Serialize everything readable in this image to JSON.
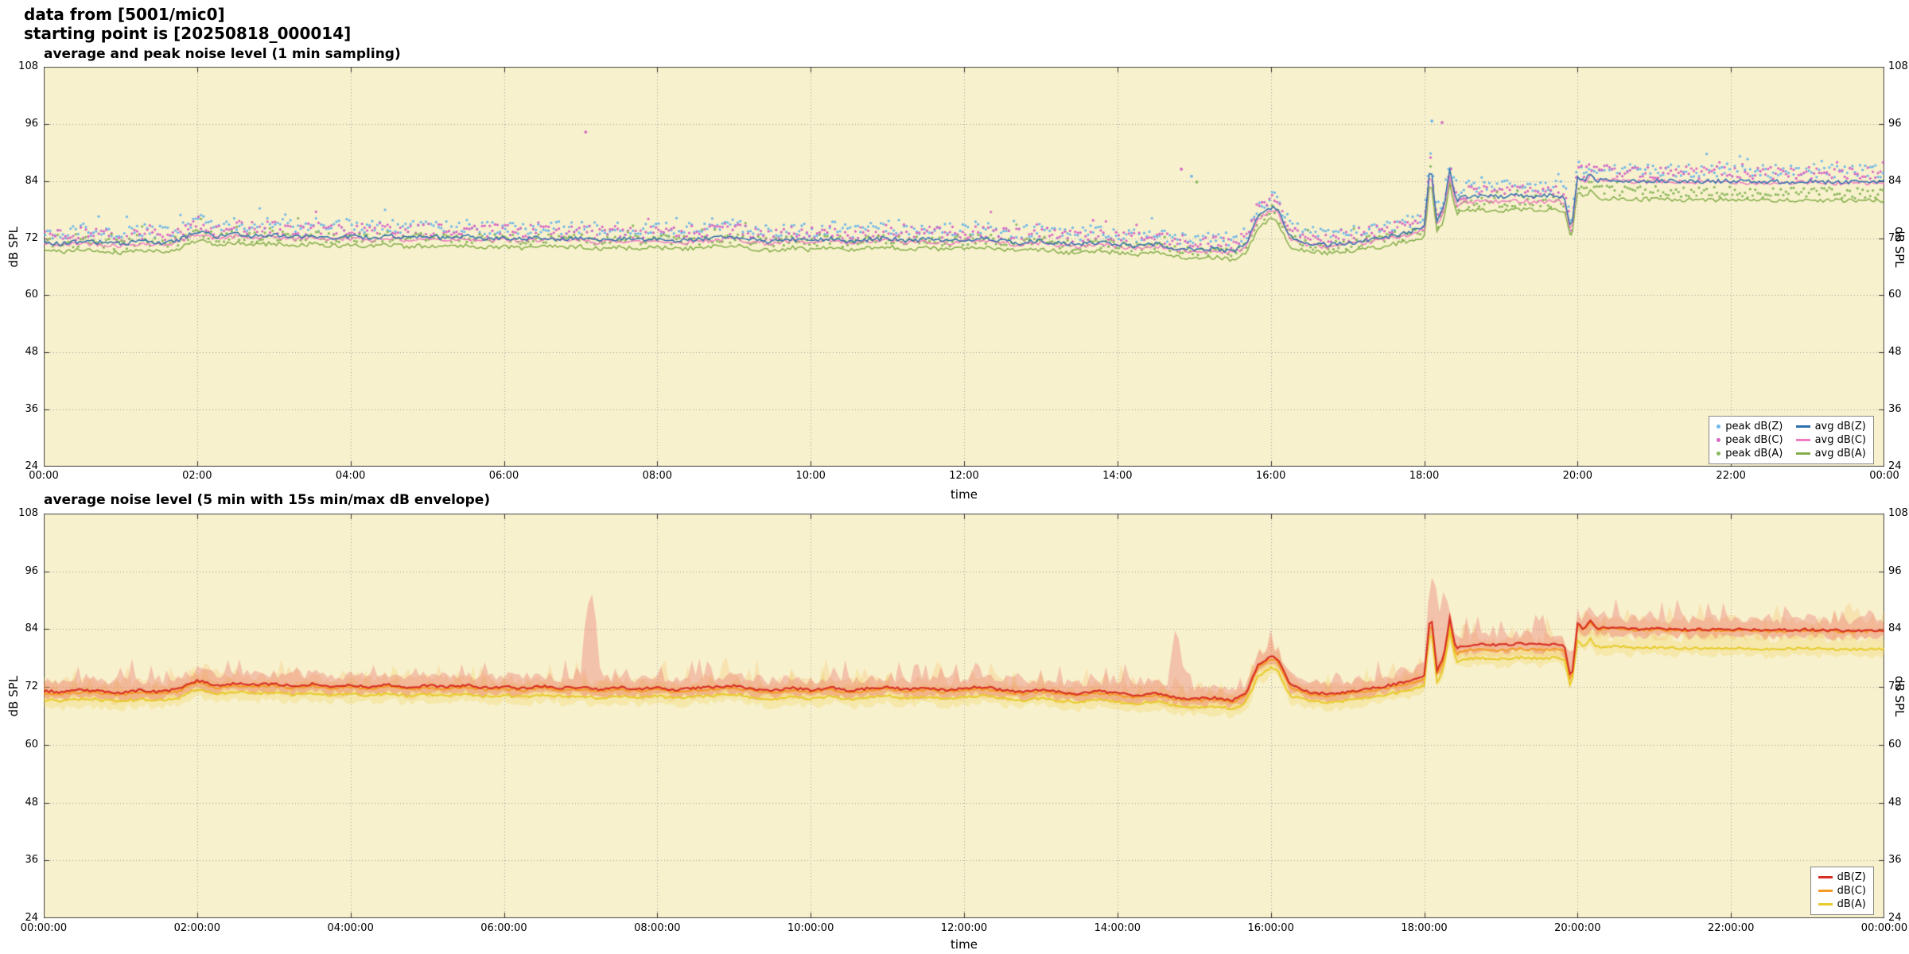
{
  "header": {
    "line1": "data from [5001/mic0]",
    "line2": "starting point is [20250818_000014]"
  },
  "colors": {
    "plot_bg": "#f8f1cd",
    "grid": "#a0a0a0",
    "border": "#444444",
    "peakZ": "#6db8e8",
    "peakC": "#d668c4",
    "peakA": "#8bb85e",
    "avgZ": "#2e6fae",
    "avgC": "#ef7bc0",
    "avgA": "#83ae49",
    "lineZ": "#d93025",
    "lineC": "#f59a23",
    "lineA": "#e8cb2a",
    "bandZ": "rgba(235,100,100,0.33)",
    "bandC": "rgba(246,170,60,0.20)",
    "bandA": "rgba(236,210,80,0.28)"
  },
  "chart_data": {
    "type": [
      "scatter+line",
      "line+band"
    ],
    "x_axis": {
      "label": "time",
      "max_minutes": 1440,
      "tick_minutes": [
        0,
        120,
        240,
        360,
        480,
        600,
        720,
        840,
        960,
        1080,
        1200,
        1320,
        1440
      ]
    },
    "y_axis": {
      "label": "dB SPL",
      "min": 24,
      "max": 108,
      "ticks": [
        24,
        36,
        48,
        60,
        72,
        84,
        96,
        108
      ]
    },
    "x_minutes": [
      0,
      15,
      30,
      45,
      60,
      75,
      90,
      105,
      120,
      135,
      150,
      165,
      180,
      195,
      210,
      225,
      240,
      255,
      270,
      285,
      300,
      315,
      330,
      345,
      360,
      375,
      390,
      405,
      420,
      435,
      450,
      465,
      480,
      495,
      510,
      525,
      540,
      555,
      570,
      585,
      600,
      615,
      630,
      645,
      660,
      675,
      690,
      705,
      720,
      735,
      750,
      765,
      780,
      795,
      810,
      825,
      840,
      855,
      870,
      885,
      900,
      915,
      930,
      940,
      950,
      960,
      965,
      975,
      990,
      1005,
      1020,
      1035,
      1050,
      1065,
      1080,
      1085,
      1090,
      1095,
      1100,
      1105,
      1110,
      1125,
      1140,
      1155,
      1170,
      1185,
      1190,
      1195,
      1200,
      1205,
      1210,
      1215,
      1230,
      1245,
      1260,
      1290,
      1320,
      1350,
      1380,
      1410,
      1440
    ],
    "series": {
      "dbz": {
        "name": "dB(Z)",
        "values": [
          71.2,
          70.9,
          71.4,
          71.1,
          70.8,
          71.3,
          71.0,
          71.5,
          73.4,
          72.3,
          72.8,
          72.4,
          72.7,
          72.2,
          72.6,
          72.1,
          72.4,
          72.0,
          72.5,
          71.9,
          72.3,
          72.0,
          72.4,
          71.8,
          72.1,
          71.7,
          72.2,
          71.8,
          72.0,
          71.5,
          71.9,
          71.6,
          71.9,
          71.4,
          71.8,
          72.0,
          72.3,
          71.6,
          71.2,
          71.8,
          71.3,
          71.9,
          71.2,
          71.7,
          72.0,
          71.4,
          71.8,
          71.3,
          71.7,
          72.0,
          71.4,
          71.0,
          71.5,
          70.9,
          70.6,
          71.2,
          70.7,
          70.2,
          70.8,
          69.9,
          69.5,
          69.8,
          69.3,
          70.4,
          76.6,
          78.4,
          78.0,
          72.4,
          70.9,
          70.6,
          71.0,
          71.5,
          72.2,
          73.0,
          74.2,
          88.0,
          75.5,
          78.0,
          86.2,
          79.6,
          80.6,
          80.9,
          80.7,
          81.0,
          80.8,
          81.0,
          80.4,
          73.0,
          85.2,
          84.0,
          85.6,
          84.2,
          84.3,
          84.0,
          84.1,
          83.9,
          84.0,
          83.8,
          83.9,
          83.7,
          83.8
        ]
      },
      "dbc": {
        "name": "dB(C)",
        "values": [
          70.8,
          70.5,
          71.0,
          70.7,
          70.4,
          70.9,
          70.6,
          71.1,
          73.0,
          71.9,
          72.4,
          72.0,
          72.3,
          71.8,
          72.2,
          71.7,
          72.0,
          71.6,
          72.1,
          71.5,
          71.9,
          71.6,
          72.0,
          71.4,
          71.7,
          71.3,
          71.8,
          71.4,
          71.6,
          71.1,
          71.5,
          71.2,
          71.5,
          71.0,
          71.4,
          71.6,
          71.9,
          71.2,
          70.8,
          71.4,
          70.9,
          71.5,
          70.8,
          71.3,
          71.6,
          71.0,
          71.4,
          70.9,
          71.3,
          71.6,
          71.0,
          70.6,
          71.1,
          70.5,
          70.2,
          70.8,
          70.3,
          69.8,
          70.4,
          69.5,
          69.1,
          69.4,
          68.9,
          70.0,
          76.1,
          77.9,
          77.5,
          72.0,
          70.5,
          70.2,
          70.6,
          71.1,
          71.8,
          72.6,
          73.6,
          87.0,
          74.8,
          77.2,
          85.0,
          78.6,
          79.5,
          79.8,
          79.6,
          79.9,
          79.7,
          79.9,
          79.3,
          72.4,
          84.8,
          83.7,
          85.2,
          84.0,
          84.1,
          83.8,
          83.9,
          83.7,
          83.8,
          83.6,
          83.7,
          83.5,
          83.6
        ]
      },
      "dba": {
        "name": "dB(A)",
        "values": [
          69.4,
          69.1,
          69.6,
          69.3,
          69.0,
          69.5,
          69.2,
          69.7,
          71.6,
          70.5,
          71.0,
          70.6,
          70.9,
          70.4,
          70.8,
          70.3,
          70.6,
          70.2,
          70.7,
          70.1,
          70.5,
          70.2,
          70.6,
          70.0,
          70.3,
          69.9,
          70.4,
          70.0,
          70.2,
          69.7,
          70.1,
          69.8,
          70.1,
          69.6,
          70.0,
          70.2,
          70.5,
          69.8,
          69.4,
          70.0,
          69.5,
          70.1,
          69.4,
          69.9,
          70.2,
          69.6,
          70.0,
          69.5,
          69.9,
          70.2,
          69.6,
          69.2,
          69.7,
          69.1,
          68.8,
          69.4,
          68.9,
          68.4,
          69.0,
          68.1,
          67.7,
          68.0,
          67.5,
          68.6,
          74.2,
          76.0,
          75.6,
          70.2,
          69.1,
          68.8,
          69.2,
          69.7,
          70.4,
          71.2,
          72.2,
          85.0,
          73.0,
          75.5,
          83.5,
          77.0,
          77.8,
          78.0,
          77.8,
          78.1,
          77.9,
          78.1,
          77.5,
          71.5,
          81.8,
          80.4,
          81.9,
          80.3,
          80.4,
          80.1,
          80.2,
          80.0,
          80.1,
          79.9,
          80.0,
          79.8,
          79.9
        ]
      }
    },
    "charts": [
      {
        "id": "top",
        "type": "scatter+line",
        "title": "average and peak noise level (1 min sampling)",
        "x_tick_labels": [
          "00:00",
          "02:00",
          "04:00",
          "06:00",
          "08:00",
          "10:00",
          "12:00",
          "14:00",
          "16:00",
          "18:00",
          "20:00",
          "22:00",
          "00:00"
        ],
        "legend": [
          {
            "label": "peak dB(Z)",
            "marker": "dot",
            "color_key": "peakZ"
          },
          {
            "label": "peak dB(C)",
            "marker": "dot",
            "color_key": "peakC"
          },
          {
            "label": "peak dB(A)",
            "marker": "dot",
            "color_key": "peakA"
          },
          {
            "label": "avg dB(Z)",
            "marker": "line",
            "color_key": "avgZ"
          },
          {
            "label": "avg dB(C)",
            "marker": "line",
            "color_key": "avgC"
          },
          {
            "label": "avg dB(A)",
            "marker": "line",
            "color_key": "avgA"
          }
        ],
        "peaks": {
          "interval_min": 2,
          "series": [
            {
              "key": "dbz",
              "color_key": "peakZ",
              "base": 0.9,
              "spread": 2.8
            },
            {
              "key": "dbc",
              "color_key": "peakC",
              "base": 0.7,
              "spread": 2.6
            },
            {
              "key": "dba",
              "color_key": "peakA",
              "base": 0.5,
              "spread": 2.2
            }
          ],
          "outliers": {
            "dbz": [
              [
                1086,
                96.6
              ],
              [
                898,
                85.0
              ]
            ],
            "dbc": [
              [
                424,
                94.3
              ],
              [
                1094,
                96.3
              ],
              [
                890,
                86.5
              ]
            ],
            "dba": [
              [
                902,
                83.8
              ]
            ]
          }
        },
        "lines": [
          {
            "key": "dba",
            "color_key": "avgA",
            "width": 1.5
          },
          {
            "key": "dbc",
            "color_key": "avgC",
            "width": 1.5
          },
          {
            "key": "dbz",
            "color_key": "avgZ",
            "width": 1.5
          }
        ],
        "line_jitter": 0.45
      },
      {
        "id": "bottom",
        "type": "line+band",
        "title": "average noise level (5 min with 15s min/max dB envelope)",
        "x_tick_labels": [
          "00:00:00",
          "02:00:00",
          "04:00:00",
          "06:00:00",
          "08:00:00",
          "10:00:00",
          "12:00:00",
          "14:00:00",
          "16:00:00",
          "18:00:00",
          "20:00:00",
          "22:00:00",
          "00:00:00"
        ],
        "legend": [
          {
            "label": "dB(Z)",
            "marker": "line",
            "color_key": "lineZ"
          },
          {
            "label": "dB(C)",
            "marker": "line",
            "color_key": "lineC"
          },
          {
            "label": "dB(A)",
            "marker": "line",
            "color_key": "lineA"
          }
        ],
        "bands": [
          {
            "key": "dba",
            "color_key": "bandA"
          },
          {
            "key": "dbc",
            "color_key": "bandC"
          },
          {
            "key": "dbz",
            "color_key": "bandZ"
          }
        ],
        "band_spikes": [
          [
            428,
            93.0
          ],
          [
            886,
            85.5
          ],
          [
            1087,
            96.5
          ],
          [
            1096,
            93.5
          ]
        ],
        "lines": [
          {
            "key": "dbc",
            "color_key": "lineC",
            "width": 2.0
          },
          {
            "key": "dba",
            "color_key": "lineA",
            "width": 2.0
          },
          {
            "key": "dbz",
            "color_key": "lineZ",
            "width": 2.2
          }
        ],
        "line_jitter": 0.25
      }
    ]
  }
}
